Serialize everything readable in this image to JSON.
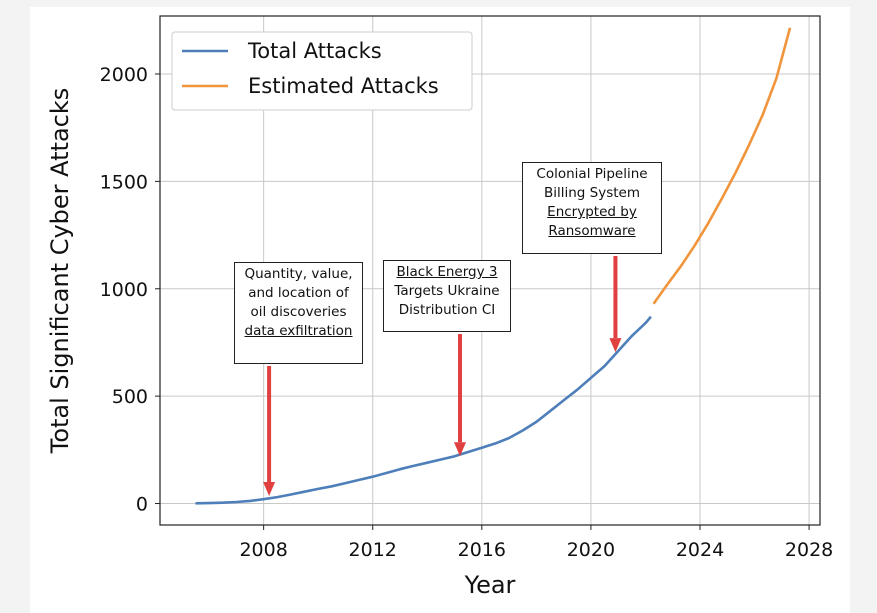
{
  "chart_data": {
    "type": "line",
    "xlabel": "Year",
    "ylabel": "Total Significant Cyber Attacks",
    "xlim": [
      2004.2,
      2028.4
    ],
    "ylim": [
      -100,
      2270
    ],
    "xticks": [
      2008,
      2012,
      2016,
      2020,
      2024,
      2028
    ],
    "yticks": [
      0,
      500,
      1000,
      1500,
      2000
    ],
    "grid": true,
    "legend_position": "top-left",
    "series": [
      {
        "name": "Total Attacks",
        "color": "#4e7fba",
        "x": [
          2005.5,
          2006.0,
          2006.5,
          2007.0,
          2007.5,
          2008.0,
          2008.5,
          2009.0,
          2009.5,
          2010.0,
          2010.5,
          2011.0,
          2011.5,
          2012.0,
          2012.5,
          2013.0,
          2013.5,
          2014.0,
          2014.5,
          2015.0,
          2015.5,
          2016.0,
          2016.5,
          2017.0,
          2017.5,
          2018.0,
          2018.5,
          2019.0,
          2019.5,
          2020.0,
          2020.5,
          2021.0,
          2021.5,
          2022.0,
          2022.2
        ],
        "y": [
          1,
          2,
          4,
          7,
          12,
          20,
          30,
          42,
          55,
          68,
          80,
          95,
          110,
          125,
          142,
          160,
          175,
          190,
          205,
          220,
          240,
          260,
          280,
          305,
          340,
          380,
          430,
          480,
          530,
          585,
          640,
          710,
          780,
          840,
          870
        ]
      },
      {
        "name": "Estimated Attacks",
        "color": "#f0953b",
        "x": [
          2022.3,
          2022.8,
          2023.3,
          2023.8,
          2024.3,
          2024.8,
          2025.3,
          2025.8,
          2026.3,
          2026.8,
          2027.3
        ],
        "y": [
          930,
          1020,
          1105,
          1200,
          1305,
          1420,
          1540,
          1670,
          1810,
          1980,
          2215
        ]
      }
    ],
    "annotations": [
      {
        "id": "a1",
        "lines": [
          {
            "text": "Quantity, value,",
            "underline": false
          },
          {
            "text": "and location of",
            "underline": false
          },
          {
            "text": "oil discoveries",
            "underline": false
          },
          {
            "text": "data exfiltration",
            "underline": true
          }
        ],
        "arrow_to": {
          "x": 2008.2,
          "y": 35
        },
        "arrow_color": "#e04040"
      },
      {
        "id": "a2",
        "lines": [
          {
            "text": "Black Energy 3",
            "underline": true
          },
          {
            "text": "Targets Ukraine",
            "underline": false
          },
          {
            "text": "Distribution CI",
            "underline": false
          }
        ],
        "arrow_to": {
          "x": 2015.2,
          "y": 220
        },
        "arrow_color": "#e04040"
      },
      {
        "id": "a3",
        "lines": [
          {
            "text": "Colonial Pipeline",
            "underline": false
          },
          {
            "text": "Billing System",
            "underline": false
          },
          {
            "text": "Encrypted by",
            "underline": true
          },
          {
            "text": "Ransomware",
            "underline": true
          }
        ],
        "arrow_to": {
          "x": 2020.9,
          "y": 705
        },
        "arrow_color": "#e04040"
      }
    ]
  }
}
